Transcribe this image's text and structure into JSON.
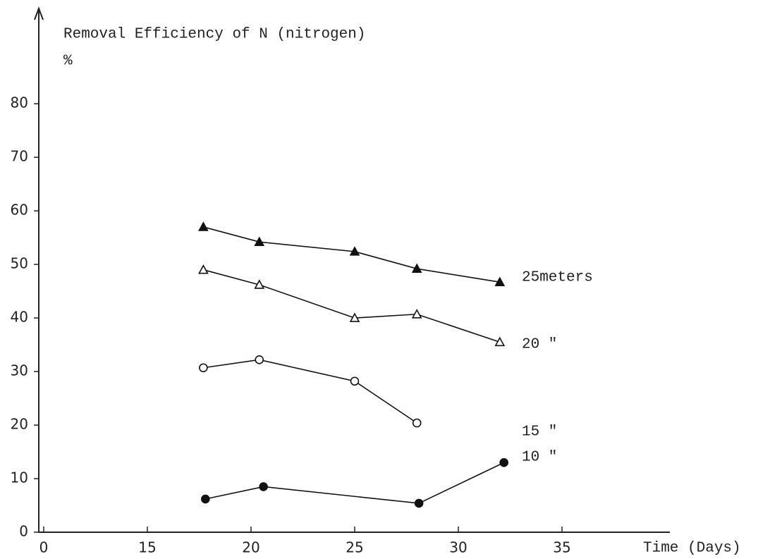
{
  "chart_data": {
    "type": "line",
    "title": "Removal Efficiency of N (nitrogen)",
    "y_label": "%",
    "x_label": "Time (Days)",
    "xlim": [
      0,
      40
    ],
    "xticks": [
      0,
      15,
      20,
      25,
      30,
      35
    ],
    "x_axis_break": true,
    "ylim": [
      0,
      97
    ],
    "yticks": [
      0,
      10,
      20,
      30,
      40,
      50,
      60,
      70,
      80
    ],
    "grid": false,
    "series": [
      {
        "name": "25meters",
        "color": "#111111",
        "marker": "triangle",
        "filled": true,
        "x": [
          17.7,
          20.4,
          25,
          28,
          32
        ],
        "values": [
          57,
          54.2,
          52.4,
          49.2,
          46.7
        ]
      },
      {
        "name": "20 \"",
        "color": "#111111",
        "marker": "triangle",
        "filled": false,
        "x": [
          17.7,
          20.4,
          25,
          28,
          32
        ],
        "values": [
          49,
          46.2,
          40,
          40.7,
          35.5
        ]
      },
      {
        "name": "15 \"",
        "color": "#111111",
        "marker": "circle",
        "filled": false,
        "x": [
          17.7,
          20.4,
          25,
          28
        ],
        "values": [
          30.7,
          32.2,
          28.2,
          20.4
        ]
      },
      {
        "name": "10 \"",
        "color": "#111111",
        "marker": "circle",
        "filled": true,
        "x": [
          17.8,
          20.6,
          28.1,
          32.2
        ],
        "values": [
          6.2,
          8.5,
          5.4,
          13
        ]
      }
    ]
  }
}
